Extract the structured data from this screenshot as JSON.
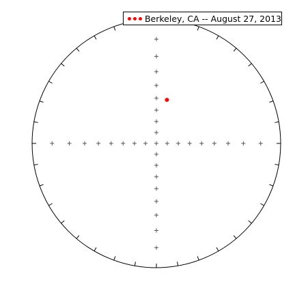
{
  "chart_data": {
    "type": "scatter",
    "title": "",
    "grid": false,
    "legend_position": "top-right",
    "colors": {
      "series": "#ff0000",
      "frame": "#000000",
      "ticks": "#555555"
    },
    "primitive_circle": {
      "tick_spacing_deg": 10
    },
    "axis_crosses": {
      "spacing_deg": 10
    },
    "series": [
      {
        "name": "Berkeley, CA -- August 27, 2013",
        "points": [
          {
            "x": 0.085,
            "y": 0.35
          }
        ]
      }
    ]
  }
}
